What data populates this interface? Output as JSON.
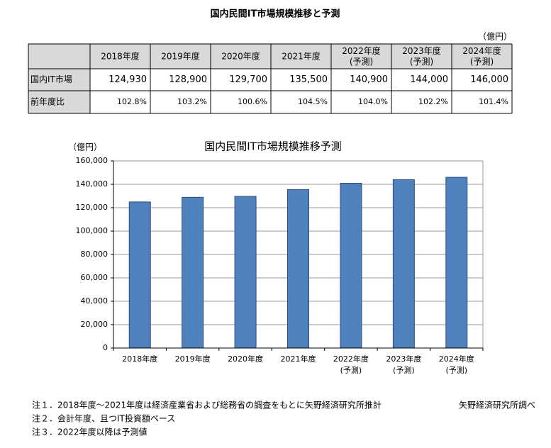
{
  "title": "国内民間IT市場規模推移と予測",
  "table": {
    "unit": "（億円）",
    "header": [
      [
        "2018年度"
      ],
      [
        "2019年度"
      ],
      [
        "2020年度"
      ],
      [
        "2021年度"
      ],
      [
        "2022年度",
        "(予測)"
      ],
      [
        "2023年度",
        "(予測)"
      ],
      [
        "2024年度",
        "(予測)"
      ]
    ],
    "rows": [
      {
        "label": "国内IT市場",
        "cells": [
          "124,930",
          "128,900",
          "129,700",
          "135,500",
          "140,900",
          "144,000",
          "146,000"
        ]
      },
      {
        "label": "前年度比",
        "cells": [
          "102.8%",
          "103.2%",
          "100.6%",
          "104.5%",
          "104.0%",
          "102.2%",
          "101.4%"
        ]
      }
    ]
  },
  "chart_data": {
    "type": "bar",
    "title": "国内民間IT市場規模推移予測",
    "y_label": "（億円）",
    "categories": [
      [
        "2018年度"
      ],
      [
        "2019年度"
      ],
      [
        "2020年度"
      ],
      [
        "2021年度"
      ],
      [
        "2022年度",
        "(予測)"
      ],
      [
        "2023年度",
        "(予測)"
      ],
      [
        "2024年度",
        "(予測)"
      ]
    ],
    "values": [
      124930,
      128900,
      129700,
      135500,
      140900,
      144000,
      146000
    ],
    "color": "#4f81bd",
    "ylim": [
      0,
      160000
    ],
    "yticks": [
      0,
      {
        "value": 20000,
        "label": "20,000"
      },
      {
        "value": 40000,
        "label": "40,000"
      },
      {
        "value": 60000,
        "label": "60,000"
      },
      {
        "value": 80000,
        "label": "80,000"
      },
      {
        "value": 100000,
        "label": "100,000"
      },
      {
        "value": 120000,
        "label": "120,000"
      },
      {
        "value": 140000,
        "label": "140,000"
      },
      {
        "value": 160000,
        "label": "160,000"
      }
    ],
    "grid": true
  },
  "notes": [
    "注１．2018年度～2021年度は経済産業省および総務省の調査をもとに矢野経済研究所推計",
    "注２．会計年度、且つIT投資額ベース",
    "注３．2022年度以降は予測値"
  ],
  "source": "矢野経済研究所調べ"
}
